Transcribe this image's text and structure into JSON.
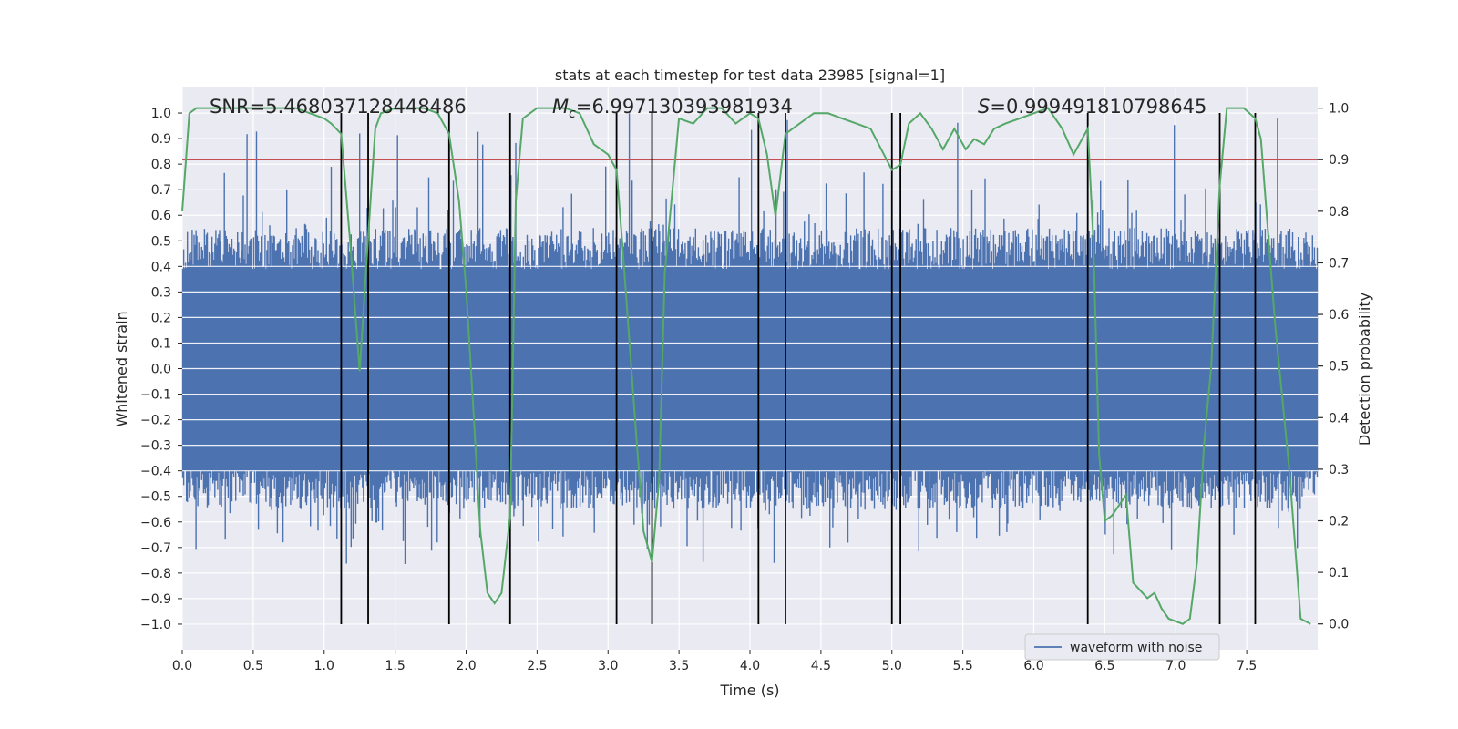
{
  "chart_data": {
    "type": "line",
    "title": "stats at each timestep for test data 23985 [signal=1]",
    "xlabel": "Time (s)",
    "ylabel": "Whitened strain",
    "y2label": "Detection probability",
    "xlim": [
      0.0,
      8.0
    ],
    "ylim": [
      -1.1,
      1.1
    ],
    "y2lim": [
      -0.05,
      1.04
    ],
    "xticks": [
      0.0,
      0.5,
      1.0,
      1.5,
      2.0,
      2.5,
      3.0,
      3.5,
      4.0,
      4.5,
      5.0,
      5.5,
      6.0,
      6.5,
      7.0,
      7.5
    ],
    "xtick_labels": [
      "0.0",
      "0.5",
      "1.0",
      "1.5",
      "2.0",
      "2.5",
      "3.0",
      "3.5",
      "4.0",
      "4.5",
      "5.0",
      "5.5",
      "6.0",
      "6.5",
      "7.0",
      "7.5"
    ],
    "yticks": [
      -1.0,
      -0.9,
      -0.8,
      -0.7,
      -0.6,
      -0.5,
      -0.4,
      -0.3,
      -0.2,
      -0.1,
      0.0,
      0.1,
      0.2,
      0.3,
      0.4,
      0.5,
      0.6,
      0.7,
      0.8,
      0.9,
      1.0
    ],
    "ytick_labels": [
      "−1.0",
      "−0.9",
      "−0.8",
      "−0.7",
      "−0.6",
      "−0.5",
      "−0.4",
      "−0.3",
      "−0.2",
      "−0.1",
      "0.0",
      "0.1",
      "0.2",
      "0.3",
      "0.4",
      "0.5",
      "0.6",
      "0.7",
      "0.8",
      "0.9",
      "1.0"
    ],
    "y2ticks": [
      0.0,
      0.1,
      0.2,
      0.3,
      0.4,
      0.5,
      0.6,
      0.7,
      0.8,
      0.9,
      1.0
    ],
    "y2tick_labels": [
      "0.0",
      "0.1",
      "0.2",
      "0.3",
      "0.4",
      "0.5",
      "0.6",
      "0.7",
      "0.8",
      "0.9",
      "1.0"
    ],
    "annotations": [
      {
        "id": "snr",
        "prefix": "SNR=",
        "value": "5.468037128448486",
        "pos": "top-left"
      },
      {
        "id": "mc",
        "prefix": "M",
        "sub": "c",
        "eq": "=",
        "value": "6.997130393981934",
        "pos": "top-center"
      },
      {
        "id": "s",
        "prefix": "S",
        "eq": "=",
        "value": "0.999491810798645",
        "pos": "top-right"
      }
    ],
    "legend": {
      "label": "waveform with noise",
      "position": "lower-right"
    },
    "threshold_y2": 0.9,
    "vlines_x": [
      1.12,
      1.31,
      1.88,
      2.31,
      3.06,
      3.31,
      4.06,
      4.25,
      5.0,
      5.06,
      6.38,
      7.31,
      7.56
    ],
    "waveform": {
      "name": "waveform with noise",
      "n_samples": 1200,
      "envelope": 0.55,
      "peak": 1.0
    },
    "series": [
      {
        "name": "detection probability",
        "axis": "y2",
        "x": [
          0.0,
          0.05,
          0.1,
          0.2,
          0.4,
          0.6,
          0.8,
          0.9,
          1.0,
          1.05,
          1.12,
          1.18,
          1.25,
          1.31,
          1.36,
          1.4,
          1.5,
          1.7,
          1.8,
          1.88,
          1.95,
          2.0,
          2.05,
          2.1,
          2.15,
          2.2,
          2.25,
          2.31,
          2.35,
          2.4,
          2.5,
          2.6,
          2.7,
          2.8,
          2.9,
          3.0,
          3.06,
          3.1,
          3.15,
          3.2,
          3.25,
          3.31,
          3.36,
          3.4,
          3.5,
          3.6,
          3.7,
          3.8,
          3.9,
          4.0,
          4.06,
          4.12,
          4.18,
          4.25,
          4.3,
          4.35,
          4.45,
          4.55,
          4.65,
          4.75,
          4.85,
          5.0,
          5.06,
          5.12,
          5.2,
          5.28,
          5.36,
          5.44,
          5.52,
          5.58,
          5.65,
          5.72,
          5.8,
          5.9,
          6.0,
          6.1,
          6.2,
          6.28,
          6.38,
          6.42,
          6.46,
          6.5,
          6.55,
          6.6,
          6.65,
          6.7,
          6.8,
          6.85,
          6.9,
          6.95,
          7.05,
          7.1,
          7.15,
          7.2,
          7.25,
          7.31,
          7.36,
          7.42,
          7.48,
          7.52,
          7.56,
          7.6,
          7.7,
          7.8,
          7.88,
          7.95
        ],
        "values": [
          0.8,
          0.99,
          1.0,
          1.0,
          1.0,
          1.0,
          1.0,
          0.99,
          0.98,
          0.97,
          0.95,
          0.75,
          0.49,
          0.75,
          0.96,
          0.99,
          1.0,
          1.0,
          0.99,
          0.95,
          0.82,
          0.65,
          0.42,
          0.18,
          0.06,
          0.04,
          0.06,
          0.21,
          0.82,
          0.98,
          1.0,
          1.0,
          1.0,
          0.99,
          0.93,
          0.91,
          0.88,
          0.74,
          0.55,
          0.36,
          0.18,
          0.12,
          0.28,
          0.68,
          0.98,
          0.97,
          1.0,
          1.0,
          0.97,
          0.99,
          0.98,
          0.91,
          0.79,
          0.95,
          0.96,
          0.97,
          0.99,
          0.99,
          0.98,
          0.97,
          0.96,
          0.88,
          0.89,
          0.97,
          0.99,
          0.96,
          0.92,
          0.96,
          0.92,
          0.94,
          0.93,
          0.96,
          0.97,
          0.98,
          0.99,
          1.0,
          0.96,
          0.91,
          0.96,
          0.74,
          0.33,
          0.2,
          0.21,
          0.23,
          0.25,
          0.08,
          0.05,
          0.06,
          0.03,
          0.01,
          0.0,
          0.01,
          0.12,
          0.35,
          0.5,
          0.85,
          1.0,
          1.0,
          1.0,
          0.99,
          0.98,
          0.94,
          0.58,
          0.3,
          0.01,
          0.0
        ]
      }
    ],
    "colors": {
      "waveform": "#4c72b0",
      "probability": "#55a868",
      "threshold": "#c44e52",
      "vlines": "#000000",
      "plot_bg": "#eaeaf2",
      "grid": "#ffffff",
      "text": "#262626"
    }
  }
}
